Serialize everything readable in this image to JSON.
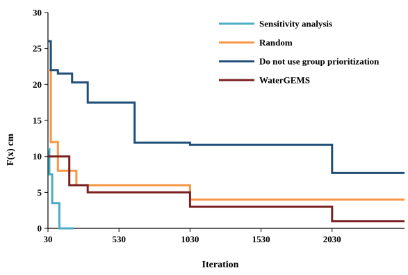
{
  "chart_data": {
    "type": "line",
    "line_style": "step",
    "xlabel": "Iteration",
    "ylabel": "F(x)  cm",
    "xlim": [
      30,
      2540
    ],
    "ylim": [
      0,
      30
    ],
    "xticks": [
      30,
      530,
      1030,
      1530,
      2030
    ],
    "yticks": [
      0,
      5,
      10,
      15,
      20,
      25,
      30
    ],
    "grid": false,
    "legend_position": "top-right",
    "series": [
      {
        "name": "Sensitivity analysis",
        "color": "#4BACC6",
        "x": [
          30,
          40,
          40,
          60,
          60,
          110,
          110,
          210
        ],
        "y": [
          11,
          11,
          7.5,
          7.5,
          3.5,
          3.5,
          0,
          0
        ]
      },
      {
        "name": "Random",
        "color": "#F79646",
        "x": [
          30,
          50,
          50,
          100,
          100,
          110,
          110,
          230,
          230,
          1030,
          1030,
          2540
        ],
        "y": [
          22,
          22,
          12,
          12,
          8,
          8,
          8,
          8,
          6,
          6,
          4,
          4
        ]
      },
      {
        "name": "Do not use group prioritization",
        "color": "#1F4E79",
        "x": [
          30,
          50,
          50,
          100,
          100,
          200,
          200,
          310,
          310,
          640,
          640,
          1030,
          1030,
          2030,
          2030,
          2540
        ],
        "y": [
          26,
          26,
          22,
          22,
          21.5,
          21.5,
          20.3,
          20.3,
          17.5,
          17.5,
          11.9,
          11.9,
          11.6,
          11.6,
          7.7,
          7.7
        ]
      },
      {
        "name": "WaterGEMS",
        "color": "#7B2020",
        "x": [
          30,
          180,
          180,
          230,
          230,
          310,
          310,
          1030,
          1030,
          2030,
          2030,
          2540
        ],
        "y": [
          10,
          10,
          6,
          6,
          6,
          6,
          5,
          5,
          3,
          3,
          1,
          1
        ]
      }
    ]
  }
}
